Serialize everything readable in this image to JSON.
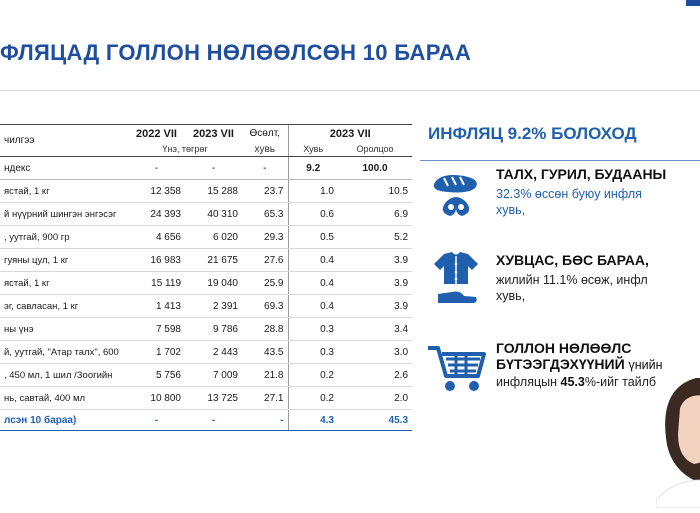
{
  "slide": {
    "title": "ФЛЯЦАД ГОЛЛОН НӨЛӨӨЛСӨН 10 БАРАА"
  },
  "table": {
    "col_name": "чилгээ",
    "col_2022": "2022 VII",
    "col_2023": "2023 VII",
    "col_growth_top": "Өсөлт,",
    "col_growth_bottom": "хувь",
    "col_2023b": "2023 VII",
    "sub_price": "Үнэ, төгрөг",
    "sub_share": "Хувь",
    "sub_contribution": "Оролцоо",
    "index_row": {
      "name": "ндекс",
      "p2022": "-",
      "p2023": "-",
      "growth": "-",
      "share": "9.2",
      "contribution": "100.0"
    },
    "rows": [
      {
        "name": "ястай, 1 кг",
        "p2022": "12 358",
        "p2023": "15 288",
        "growth": "23.7",
        "share": "1.0",
        "contribution": "10.5"
      },
      {
        "name": "й нүүрний шингэн энгэсэг",
        "p2022": "24 393",
        "p2023": "40 310",
        "growth": "65.3",
        "share": "0.6",
        "contribution": "6.9"
      },
      {
        "name": ", уутгай, 900 гр",
        "p2022": "4 656",
        "p2023": "6 020",
        "growth": "29.3",
        "share": "0.5",
        "contribution": "5.2"
      },
      {
        "name": "гуяны цул, 1 кг",
        "p2022": "16 983",
        "p2023": "21 675",
        "growth": "27.6",
        "share": "0.4",
        "contribution": "3.9"
      },
      {
        "name": "ястай, 1 кг",
        "p2022": "15 119",
        "p2023": "19 040",
        "growth": "25.9",
        "share": "0.4",
        "contribution": "3.9"
      },
      {
        "name": "эг, савласан, 1 кг",
        "p2022": "1 413",
        "p2023": "2 391",
        "growth": "69.3",
        "share": "0.4",
        "contribution": "3.9"
      },
      {
        "name": "ны үнэ",
        "p2022": "7 598",
        "p2023": "9 786",
        "growth": "28.8",
        "share": "0.3",
        "contribution": "3.4"
      },
      {
        "name": "й, уутгай, \"Атар талх\", 600",
        "p2022": "1 702",
        "p2023": "2 443",
        "growth": "43.5",
        "share": "0.3",
        "contribution": "3.0"
      },
      {
        "name": ", 450 мл, 1 шил /Зоогийн",
        "p2022": "5 756",
        "p2023": "7 009",
        "growth": "21.8",
        "share": "0.2",
        "contribution": "2.6"
      },
      {
        "name": "нь, савтай, 400 мл",
        "p2022": "10 800",
        "p2023": "13 725",
        "growth": "27.1",
        "share": "0.2",
        "contribution": "2.0"
      }
    ],
    "total_row": {
      "name": "лсэн 10 бараа)",
      "p2022": "-",
      "p2023": "-",
      "growth": "-",
      "share": "4.3",
      "contribution": "45.3"
    }
  },
  "panel": {
    "heading": "ИНФЛЯЦ 9.2% БОЛОХОД",
    "block1": {
      "title": "ТАЛХ, ГУРИЛ, БУДААНЫ",
      "line1": "32.3% өссөн буюу инфля",
      "line2": "хувь,",
      "icon": "bread-icon"
    },
    "block2": {
      "title": "ХУВЦАС, БӨС БАРАА,",
      "line1": "жилийн 11.1% өсөж, инфл",
      "line2": "хувь,",
      "icon": "clothing-icon"
    },
    "block3": {
      "title1": "ГОЛЛОН НӨЛӨӨЛС",
      "title2": "БҮТЭЭГДЭХҮҮНИЙ",
      "title2_tail": "үнийн",
      "line_prefix": "инфляцын",
      "line_value": "45.3",
      "line_suffix": "%-ийг тайлб",
      "icon": "shopping-cart-icon"
    }
  },
  "colors": {
    "brand_blue": "#1f5fae",
    "title_blue": "#1f4e9e"
  }
}
